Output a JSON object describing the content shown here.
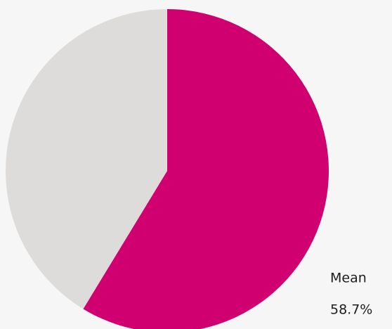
{
  "chart_data": {
    "type": "pie",
    "categories": [
      "Mean",
      null
    ],
    "values": [
      58.7,
      41.3
    ],
    "value_labels": [
      "58.7%",
      null
    ],
    "colors": [
      "#d10070",
      "#dedcdb"
    ]
  }
}
